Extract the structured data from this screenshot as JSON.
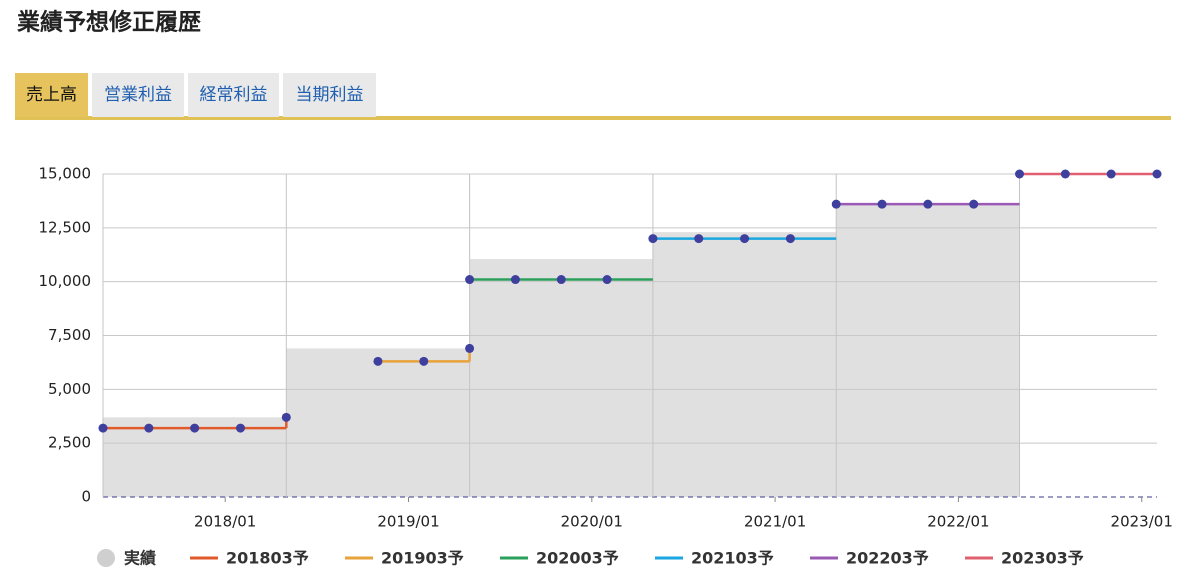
{
  "header": {
    "title": "業績予想修正履歴"
  },
  "tabs": {
    "items": [
      "売上高",
      "営業利益",
      "経常利益",
      "当期利益"
    ],
    "active": 0
  },
  "chart_data": {
    "type": "line",
    "xlim": [
      "2017/05",
      "2023/02"
    ],
    "xticks": [
      "2018/01",
      "2019/01",
      "2020/01",
      "2021/01",
      "2022/01",
      "2023/01"
    ],
    "ylim": [
      0,
      15000
    ],
    "yticks": [
      0,
      {
        "value": 2500,
        "label": "2,500"
      },
      {
        "value": 5000,
        "label": "5,000"
      },
      {
        "value": 7500,
        "label": "7,500"
      },
      {
        "value": 10000,
        "label": "10,000"
      },
      {
        "value": 12500,
        "label": "12,500"
      },
      {
        "value": 15000,
        "label": "15,000"
      }
    ],
    "grid": true,
    "series": [
      {
        "name": "実績",
        "color": "#e0e0e0",
        "bins": [
          "2017/05",
          "2018/05",
          "2019/05",
          "2020/05",
          "2021/05",
          "2022/05"
        ],
        "values": [
          3700,
          6900,
          11050,
          12300,
          13650
        ]
      },
      {
        "name": "201803予",
        "color": "#e05a2b",
        "x": [
          "2017/05",
          "2017/08",
          "2017/11",
          "2018/02",
          "2018/05"
        ],
        "values": [
          3200,
          3200,
          3200,
          3200,
          3700
        ]
      },
      {
        "name": "201903予",
        "color": "#e8a33a",
        "x": [
          "2018/11",
          "2019/02",
          "2019/05"
        ],
        "values": [
          6300,
          6300,
          6900
        ]
      },
      {
        "name": "202003予",
        "color": "#2aa05a",
        "x": [
          "2019/05",
          "2019/08",
          "2019/11",
          "2020/02"
        ],
        "values": [
          10100,
          10100,
          10100,
          10100
        ]
      },
      {
        "name": "202103予",
        "color": "#1aa6e0",
        "x": [
          "2020/05",
          "2020/08",
          "2020/11",
          "2021/02"
        ],
        "values": [
          12000,
          12000,
          12000,
          12000
        ]
      },
      {
        "name": "202203予",
        "color": "#9b59b6",
        "x": [
          "2021/05",
          "2021/08",
          "2021/11",
          "2022/02"
        ],
        "values": [
          13600,
          13600,
          13600,
          13600
        ]
      },
      {
        "name": "202303予",
        "color": "#e06070",
        "x": [
          "2022/05",
          "2022/08",
          "2022/11",
          "2023/02"
        ],
        "values": [
          15000,
          15000,
          15000,
          15000
        ]
      }
    ]
  }
}
